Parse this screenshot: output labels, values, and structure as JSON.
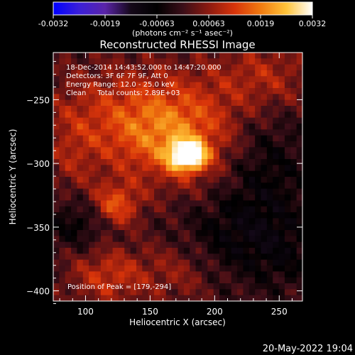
{
  "colorbar": {
    "tick_labels": [
      "-0.0032",
      "-0.0019",
      "-0.00063",
      "0.00063",
      "0.0019",
      "0.0032"
    ],
    "unit_label": "(photons cm⁻² s⁻¹ asec⁻²)",
    "range": [
      -0.0032,
      0.0032
    ],
    "colormap": [
      "#0000ff",
      "#3b1fd8",
      "#5a24a8",
      "#140818",
      "#000000",
      "#3a0e18",
      "#8c1a10",
      "#d8340a",
      "#f07a10",
      "#ffc43a",
      "#ffffff"
    ]
  },
  "timestamp": "20-May-2022 19:04",
  "chart_data": {
    "type": "heatmap",
    "title": "Reconstructed RHESSI Image",
    "xlabel": "Heliocentric X (arcsec)",
    "ylabel": "Heliocentric Y (arcsec)",
    "xlim": [
      75,
      268
    ],
    "ylim": [
      -408,
      -213
    ],
    "x_ticks": [
      100,
      150,
      200,
      250
    ],
    "y_ticks": [
      -250,
      -300,
      -350,
      -400
    ],
    "annotations": [
      "18-Dec-2014 14:43:52.000 to 14:47:20.000",
      "Detectors: 3F 6F 7F 9F, Att 0",
      "Energy Range: 12.0 - 25.0 keV",
      "Clean     Total counts: 2.89E+03"
    ],
    "peak_label": "Position of Peak = [179,-294]",
    "peak": {
      "x": 179,
      "y": -294
    },
    "sources": [
      {
        "x": 179,
        "y": -294,
        "sx": 10,
        "sy": 8,
        "amp": 0.0032
      },
      {
        "x": 170,
        "y": -282,
        "sx": 34,
        "sy": 26,
        "amp": 0.0012
      },
      {
        "x": 123,
        "y": -333,
        "sx": 13,
        "sy": 12,
        "amp": 0.0015
      },
      {
        "x": 140,
        "y": -262,
        "sx": 48,
        "sy": 28,
        "amp": 0.0011
      },
      {
        "x": 238,
        "y": -232,
        "sx": 28,
        "sy": 20,
        "amp": 0.0009
      },
      {
        "x": 118,
        "y": -388,
        "sx": 22,
        "sy": 16,
        "amp": 0.0011
      },
      {
        "x": 172,
        "y": -385,
        "sx": 20,
        "sy": 18,
        "amp": 0.0006
      },
      {
        "x": 90,
        "y": -300,
        "sx": 14,
        "sy": 30,
        "amp": 0.0005
      },
      {
        "x": 238,
        "y": -305,
        "sx": 24,
        "sy": 40,
        "amp": -0.0007
      },
      {
        "x": 212,
        "y": -358,
        "sx": 30,
        "sy": 22,
        "amp": -0.0006
      },
      {
        "x": 95,
        "y": -345,
        "sx": 18,
        "sy": 16,
        "amp": -0.0008
      },
      {
        "x": 253,
        "y": -372,
        "sx": 18,
        "sy": 20,
        "amp": -0.0004
      }
    ]
  }
}
